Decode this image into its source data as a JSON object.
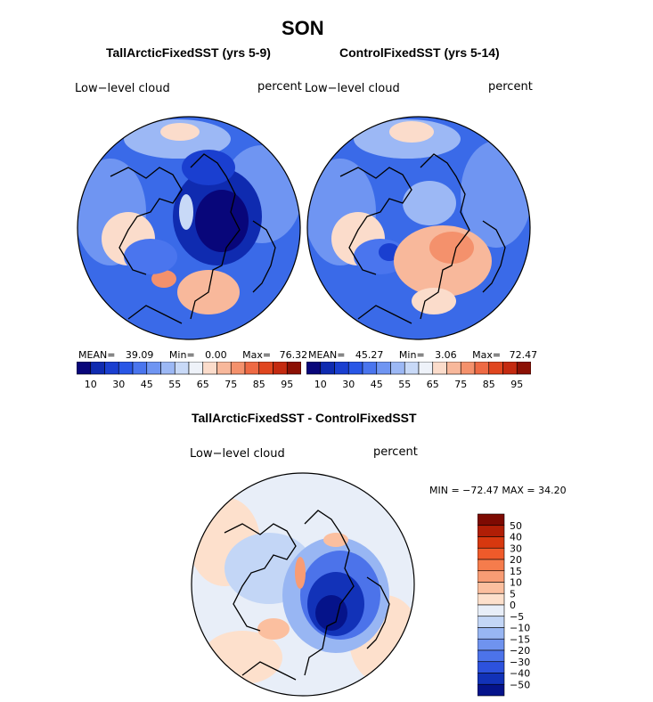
{
  "figure": {
    "title": "SON"
  },
  "chart_data": [
    {
      "type": "heatmap",
      "title": "TallArcticFixedSST (yrs 5-9)",
      "variable_label": "Low−level cloud",
      "units_label": "percent",
      "stats": {
        "mean_label": "MEAN=",
        "mean": "39.09",
        "min_label": "Min=",
        "min": "0.00",
        "max_label": "Max=",
        "max": "76.32"
      },
      "colorbar": {
        "orientation": "horizontal",
        "levels": [
          10,
          20,
          30,
          40,
          45,
          50,
          55,
          60,
          65,
          70,
          75,
          80,
          85,
          90,
          95
        ],
        "tick_labels": [
          "10",
          "30",
          "45",
          "55",
          "65",
          "75",
          "85",
          "95"
        ],
        "colors": [
          "#08067a",
          "#0f2bb0",
          "#1a3fd0",
          "#2856e6",
          "#4a75ee",
          "#6f95f2",
          "#9cb8f5",
          "#c8d9f7",
          "#eef2f9",
          "#fbdccb",
          "#f8b89b",
          "#f4916c",
          "#ee6a44",
          "#e0461f",
          "#c42a10",
          "#8c1004"
        ]
      }
    },
    {
      "type": "heatmap",
      "title": "ControlFixedSST (yrs 5-14)",
      "variable_label": "Low−level cloud",
      "units_label": "percent",
      "stats": {
        "mean_label": "MEAN=",
        "mean": "45.27",
        "min_label": "Min=",
        "min": "3.06",
        "max_label": "Max=",
        "max": "72.47"
      },
      "colorbar": {
        "orientation": "horizontal",
        "levels": [
          10,
          20,
          30,
          40,
          45,
          50,
          55,
          60,
          65,
          70,
          75,
          80,
          85,
          90,
          95
        ],
        "tick_labels": [
          "10",
          "30",
          "45",
          "55",
          "65",
          "75",
          "85",
          "95"
        ],
        "colors": [
          "#08067a",
          "#0f2bb0",
          "#1a3fd0",
          "#2856e6",
          "#4a75ee",
          "#6f95f2",
          "#9cb8f5",
          "#c8d9f7",
          "#eef2f9",
          "#fbdccb",
          "#f8b89b",
          "#f4916c",
          "#ee6a44",
          "#e0461f",
          "#c42a10",
          "#8c1004"
        ]
      }
    },
    {
      "type": "heatmap",
      "title": "TallArcticFixedSST - ControlFixedSST",
      "variable_label": "Low−level cloud",
      "units_label": "percent",
      "stats": {
        "text": "MIN = −72.47 MAX =  34.20",
        "min": "−72.47",
        "max": "34.20"
      },
      "colorbar": {
        "orientation": "vertical",
        "levels": [
          -50,
          -40,
          -30,
          -20,
          -15,
          -10,
          -5,
          0,
          5,
          10,
          15,
          20,
          30,
          40,
          50
        ],
        "tick_labels": [
          "50",
          "40",
          "30",
          "20",
          "15",
          "10",
          "5",
          "0",
          "−5",
          "−10",
          "−15",
          "−20",
          "−30",
          "−40",
          "−50"
        ],
        "colors": [
          "#7d0a02",
          "#b01e06",
          "#d7380f",
          "#ef5a2a",
          "#f57c4c",
          "#f89c74",
          "#fbbf9f",
          "#fde0cc",
          "#e8eef8",
          "#c3d6f6",
          "#98b6f3",
          "#6f93ef",
          "#4c73ea",
          "#2d52dd",
          "#1232b8",
          "#05138a"
        ]
      }
    }
  ]
}
